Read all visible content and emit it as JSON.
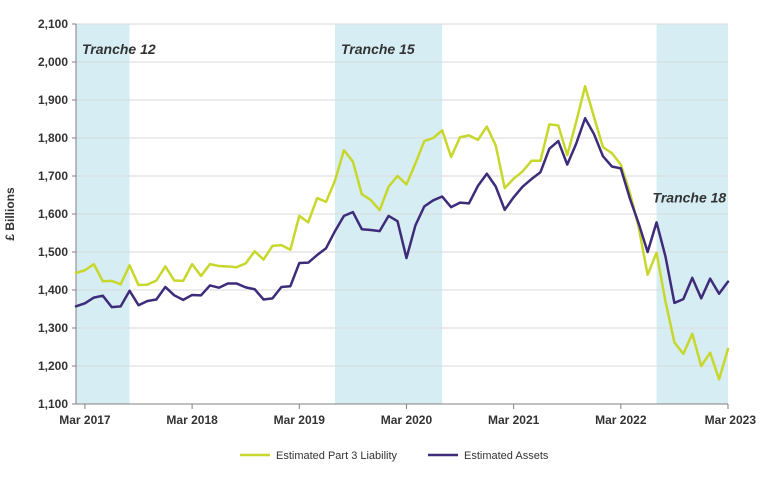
{
  "chart_data": {
    "type": "line",
    "title": "",
    "ylabel": "£ Billions",
    "xlabel": "",
    "ylim": [
      1100,
      2100
    ],
    "yticks": [
      1100,
      1200,
      1300,
      1400,
      1500,
      1600,
      1700,
      1800,
      1900,
      2000,
      2100
    ],
    "ytick_labels": [
      "1,100",
      "1,200",
      "1,300",
      "1,400",
      "1,500",
      "1,600",
      "1,700",
      "1,800",
      "1,900",
      "2,000",
      "2,100"
    ],
    "xlim": [
      "2017-02",
      "2023-03"
    ],
    "xticks": [
      "2017-03",
      "2018-03",
      "2019-03",
      "2020-03",
      "2021-03",
      "2022-03",
      "2023-03"
    ],
    "xtick_labels": [
      "Mar 2017",
      "Mar 2018",
      "Mar 2019",
      "Mar 2020",
      "Mar 2021",
      "Mar 2022",
      "Mar 2023"
    ],
    "grid": "horizontal",
    "legend_position": "bottom",
    "bands": [
      {
        "label": "Tranche 12",
        "start": "2017-02",
        "end": "2017-08",
        "color": "#d6eef3",
        "label_anchor": "top"
      },
      {
        "label": "Tranche 15",
        "start": "2019-07",
        "end": "2020-07",
        "color": "#d6eef3",
        "label_anchor": "top"
      },
      {
        "label": "Tranche 18",
        "start": "2022-07",
        "end": "2023-03",
        "color": "#d6eef3",
        "label_anchor": "middle"
      }
    ],
    "x": [
      "2017-02",
      "2017-03",
      "2017-04",
      "2017-05",
      "2017-06",
      "2017-07",
      "2017-08",
      "2017-09",
      "2017-10",
      "2017-11",
      "2017-12",
      "2018-01",
      "2018-02",
      "2018-03",
      "2018-04",
      "2018-05",
      "2018-06",
      "2018-07",
      "2018-08",
      "2018-09",
      "2018-10",
      "2018-11",
      "2018-12",
      "2019-01",
      "2019-02",
      "2019-03",
      "2019-04",
      "2019-05",
      "2019-06",
      "2019-07",
      "2019-08",
      "2019-09",
      "2019-10",
      "2019-11",
      "2019-12",
      "2020-01",
      "2020-02",
      "2020-03",
      "2020-04",
      "2020-05",
      "2020-06",
      "2020-07",
      "2020-08",
      "2020-09",
      "2020-10",
      "2020-11",
      "2020-12",
      "2021-01",
      "2021-02",
      "2021-03",
      "2021-04",
      "2021-05",
      "2021-06",
      "2021-07",
      "2021-08",
      "2021-09",
      "2021-10",
      "2021-11",
      "2021-12",
      "2022-01",
      "2022-02",
      "2022-03",
      "2022-04",
      "2022-05",
      "2022-06",
      "2022-07",
      "2022-08",
      "2022-09",
      "2022-10",
      "2022-11",
      "2022-12",
      "2023-01",
      "2023-02",
      "2023-03"
    ],
    "series": [
      {
        "name": "Estimated Part 3 Liability",
        "color": "#c8d72b",
        "values": [
          1445,
          1452,
          1468,
          1423,
          1424,
          1415,
          1465,
          1413,
          1414,
          1425,
          1462,
          1425,
          1424,
          1468,
          1437,
          1468,
          1463,
          1462,
          1460,
          1470,
          1502,
          1480,
          1516,
          1518,
          1506,
          1595,
          1578,
          1642,
          1632,
          1688,
          1768,
          1738,
          1652,
          1637,
          1610,
          1672,
          1700,
          1678,
          1733,
          1792,
          1800,
          1820,
          1750,
          1802,
          1807,
          1795,
          1830,
          1780,
          1668,
          1693,
          1712,
          1740,
          1740,
          1836,
          1833,
          1755,
          1842,
          1936,
          1855,
          1776,
          1760,
          1730,
          1657,
          1565,
          1440,
          1498,
          1370,
          1262,
          1232,
          1285,
          1200,
          1235,
          1165,
          1245
        ]
      },
      {
        "name": "Estimated Assets",
        "color": "#3e2c7a",
        "values": [
          1357,
          1365,
          1380,
          1385,
          1355,
          1357,
          1398,
          1360,
          1371,
          1375,
          1408,
          1386,
          1374,
          1387,
          1386,
          1412,
          1406,
          1417,
          1417,
          1407,
          1402,
          1375,
          1378,
          1408,
          1410,
          1471,
          1472,
          1492,
          1510,
          1555,
          1595,
          1605,
          1560,
          1558,
          1555,
          1595,
          1581,
          1484,
          1570,
          1620,
          1636,
          1646,
          1618,
          1630,
          1628,
          1674,
          1706,
          1672,
          1611,
          1644,
          1672,
          1692,
          1710,
          1772,
          1792,
          1730,
          1785,
          1852,
          1810,
          1752,
          1725,
          1720,
          1642,
          1575,
          1500,
          1578,
          1488,
          1366,
          1376,
          1432,
          1378,
          1430,
          1390,
          1422
        ]
      }
    ]
  }
}
